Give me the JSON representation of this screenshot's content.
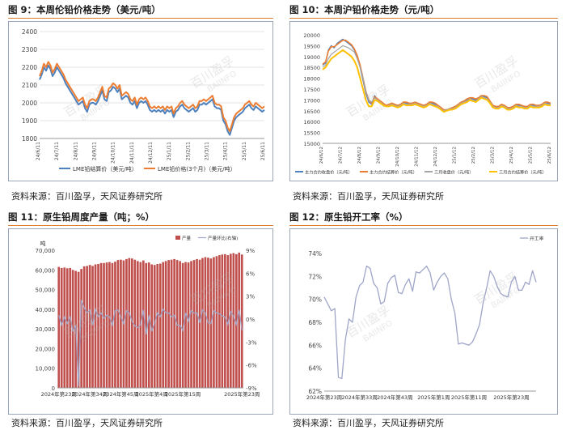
{
  "panels": {
    "p9": {
      "title": "图 9：本周伦铅价格走势（美元/吨）",
      "source": "资料来源：百川盈孚，天风证券研究所"
    },
    "p10": {
      "title": "图 10：本周沪铅价格走势（元/吨）",
      "source": "资料来源：百川盈孚，天风证券研究所"
    },
    "p11": {
      "title": "图 11：原生铅周度产量（吨；%）",
      "source": "资料来源：百川盈孚，天风证券研究所"
    },
    "p12": {
      "title": "图 12：原生铅开工率（%）",
      "source": "资料来源：百川盈孚，天风证券研究所"
    }
  },
  "watermark": {
    "text_cn": "百川盈孚",
    "text_en": "BAIINFO"
  },
  "colors": {
    "rule": "#e07b2a",
    "frame": "#9aa7b8",
    "blue": "#4f81bd",
    "orange": "#ed7d31",
    "gray": "#a5a5a5",
    "gold": "#ffc000",
    "bar": "#c0504d",
    "line12": "#9fa5c8"
  },
  "chart_data": [
    {
      "id": "p9",
      "type": "line",
      "ylim": [
        1800,
        2400
      ],
      "yticks": [
        1800,
        1900,
        2000,
        2100,
        2200,
        2300,
        2400
      ],
      "ytick_labels": [
        "1800",
        "1900",
        "2000",
        "2100",
        "2200",
        "2300",
        "2400"
      ],
      "xtick_labels": [
        "24/6/11",
        "24/7/11",
        "24/8/11",
        "24/9/11",
        "24/10/11",
        "24/11/11",
        "24/12/11",
        "25/1/11",
        "25/2/11",
        "25/3/11",
        "25/4/11",
        "25/5/11",
        "25/6/11"
      ],
      "legend": [
        "LME铅结算价（美元/吨）",
        "LME铅价格(3个月)（美元/吨）"
      ],
      "series": [
        {
          "name": "LME铅结算价（美元/吨）",
          "color": "#4f81bd",
          "values": [
            2130,
            2160,
            2200,
            2180,
            2210,
            2190,
            2150,
            2170,
            2200,
            2180,
            2160,
            2140,
            2110,
            2090,
            2070,
            2050,
            2030,
            2010,
            1990,
            2000,
            2010,
            1970,
            1950,
            1990,
            2000,
            2000,
            1990,
            2010,
            2040,
            2070,
            2020,
            2010,
            2060,
            2070,
            2090,
            2080,
            2060,
            2080,
            2020,
            2030,
            2040,
            2030,
            2000,
            1990,
            2010,
            1970,
            2000,
            2010,
            2000,
            2010,
            1990,
            1960,
            1950,
            1960,
            1950,
            1960,
            1950,
            1960,
            1940,
            1960,
            1950,
            1960,
            1920,
            1950,
            1960,
            1980,
            1990,
            1970,
            1960,
            1950,
            1960,
            1970,
            1950,
            1960,
            1990,
            1990,
            2000,
            1990,
            2000,
            2010,
            2020,
            1980,
            1970,
            1970,
            1960,
            1900,
            1880,
            1840,
            1820,
            1860,
            1900,
            1920,
            1930,
            1940,
            1950,
            1970,
            1980,
            1990,
            1970,
            1960,
            1980,
            1970,
            1960,
            1950,
            1960
          ]
        },
        {
          "name": "LME铅价格(3个月)（美元/吨）",
          "color": "#ed7d31",
          "values": [
            2150,
            2180,
            2220,
            2200,
            2230,
            2210,
            2170,
            2190,
            2220,
            2200,
            2180,
            2160,
            2130,
            2110,
            2090,
            2070,
            2050,
            2030,
            2010,
            2020,
            2030,
            1990,
            1970,
            2010,
            2020,
            2020,
            2010,
            2030,
            2060,
            2090,
            2040,
            2030,
            2080,
            2090,
            2110,
            2100,
            2080,
            2100,
            2040,
            2050,
            2060,
            2050,
            2020,
            2010,
            2030,
            1990,
            2020,
            2030,
            2020,
            2030,
            2010,
            1980,
            1970,
            1980,
            1970,
            1980,
            1970,
            1980,
            1960,
            1980,
            1970,
            1980,
            1940,
            1970,
            1980,
            2000,
            2010,
            1990,
            1980,
            1970,
            1980,
            1990,
            1970,
            1980,
            2010,
            2010,
            2020,
            2010,
            2020,
            2030,
            2040,
            2000,
            1990,
            1990,
            1980,
            1920,
            1900,
            1860,
            1840,
            1880,
            1920,
            1940,
            1950,
            1960,
            1970,
            1990,
            2000,
            2010,
            1990,
            1980,
            2000,
            1990,
            1980,
            1970,
            1980
          ]
        }
      ]
    },
    {
      "id": "p10",
      "type": "line",
      "ylim": [
        15000,
        20000
      ],
      "yticks": [
        15000,
        15500,
        16000,
        16500,
        17000,
        17500,
        18000,
        18500,
        19000,
        19500,
        20000
      ],
      "ytick_labels": [
        "15000",
        "15500",
        "16000",
        "16500",
        "17000",
        "17500",
        "18000",
        "18500",
        "19000",
        "19500",
        "20000"
      ],
      "xtick_labels": [
        "24/6/12",
        "24/7/12",
        "24/8/12",
        "24/9/12",
        "24/10/12",
        "24/11/12",
        "24/12/12",
        "25/1/12",
        "25/2/12",
        "25/3/12",
        "25/4/12",
        "25/5/12",
        "25/6/12"
      ],
      "legend": [
        "主力合约收盘价（元/吨）",
        "主力合约结算价（元/吨）",
        "三月收盘价（元/吨）",
        "三月合约结算价（元/吨）"
      ],
      "series": [
        {
          "name": "主力合约收盘价（元/吨）",
          "color": "#4f81bd",
          "values": [
            18600,
            18700,
            19300,
            19500,
            19400,
            19600,
            19700,
            19800,
            19700,
            19600,
            19500,
            19300,
            19000,
            18500,
            17900,
            17300,
            16900,
            16800,
            17200,
            17000,
            16900,
            16800,
            16700,
            16800,
            16850,
            16800,
            16700,
            16800,
            16900,
            16850,
            16800,
            16850,
            16900,
            16800,
            16750,
            16700,
            16800,
            16900,
            16850,
            16800,
            16700,
            16600,
            16500,
            16550,
            16600,
            16650,
            16700,
            16800,
            16900,
            16950,
            17000,
            17100,
            17050,
            17000,
            17100,
            17200,
            17150,
            17100,
            16900,
            16700,
            16650,
            16700,
            16800,
            16700,
            16600,
            16650,
            16700,
            16800,
            16750,
            16700,
            16650,
            16700,
            16800,
            16750,
            16700,
            16750,
            16800,
            16900,
            16850,
            16800
          ]
        },
        {
          "name": "主力合约结算价（元/吨）",
          "color": "#ed7d31",
          "values": [
            18650,
            18750,
            19250,
            19450,
            19450,
            19550,
            19650,
            19750,
            19750,
            19650,
            19550,
            19350,
            19050,
            18600,
            18000,
            17400,
            17000,
            16850,
            17150,
            17050,
            16950,
            16850,
            16750,
            16800,
            16850,
            16800,
            16750,
            16800,
            16900,
            16900,
            16850,
            16850,
            16900,
            16850,
            16800,
            16750,
            16800,
            16900,
            16900,
            16850,
            16750,
            16650,
            16550,
            16550,
            16600,
            16650,
            16700,
            16800,
            16900,
            16950,
            17050,
            17100,
            17100,
            17050,
            17100,
            17200,
            17200,
            17150,
            16950,
            16750,
            16700,
            16700,
            16800,
            16750,
            16650,
            16650,
            16700,
            16800,
            16800,
            16750,
            16700,
            16700,
            16800,
            16800,
            16750,
            16750,
            16800,
            16900,
            16900,
            16850
          ]
        },
        {
          "name": "三月收盘价（元/吨）",
          "color": "#a5a5a5",
          "values": [
            18500,
            18600,
            18900,
            19100,
            19200,
            19300,
            19400,
            19500,
            19450,
            19400,
            19300,
            19200,
            18900,
            18500,
            18000,
            17400,
            17000,
            16900,
            17100,
            17000,
            16900,
            16800,
            16700,
            16750,
            16800,
            16750,
            16700,
            16750,
            16850,
            16800,
            16800,
            16800,
            16850,
            16800,
            16750,
            16700,
            16750,
            16850,
            16800,
            16750,
            16700,
            16600,
            16500,
            16550,
            16600,
            16600,
            16650,
            16750,
            16850,
            16900,
            16950,
            17050,
            17000,
            16950,
            17050,
            17150,
            17100,
            17050,
            16900,
            16700,
            16650,
            16650,
            16750,
            16700,
            16600,
            16600,
            16650,
            16750,
            16700,
            16700,
            16650,
            16650,
            16750,
            16700,
            16700,
            16700,
            16750,
            16850,
            16800,
            16800
          ]
        },
        {
          "name": "三月合约结算价（元/吨）",
          "color": "#ffc000",
          "values": [
            18400,
            18500,
            18700,
            18900,
            19000,
            19100,
            19200,
            19300,
            19200,
            19100,
            19000,
            18800,
            18500,
            18000,
            17500,
            17000,
            16700,
            16700,
            17000,
            16950,
            16850,
            16750,
            16700,
            16700,
            16750,
            16700,
            16650,
            16700,
            16800,
            16750,
            16750,
            16750,
            16800,
            16750,
            16700,
            16650,
            16700,
            16800,
            16750,
            16700,
            16650,
            16550,
            16450,
            16500,
            16550,
            16550,
            16600,
            16700,
            16800,
            16850,
            16900,
            17000,
            16950,
            16900,
            17000,
            17100,
            17050,
            17000,
            16850,
            16650,
            16600,
            16600,
            16700,
            16650,
            16550,
            16550,
            16600,
            16700,
            16650,
            16650,
            16600,
            16600,
            16700,
            16650,
            16650,
            16650,
            16700,
            16800,
            16750,
            16750
          ]
        }
      ]
    },
    {
      "id": "p11",
      "type": "bar",
      "unit_label": "吨",
      "ylim": [
        0,
        70000
      ],
      "yticks": [
        0,
        10000,
        20000,
        30000,
        40000,
        50000,
        60000,
        70000
      ],
      "ytick_labels": [
        "0",
        "10,000",
        "20,000",
        "30,000",
        "40,000",
        "50,000",
        "60,000",
        "70,000"
      ],
      "y2lim": [
        -9,
        9
      ],
      "y2ticks": [
        -9,
        -6,
        -3,
        0,
        3,
        6,
        9
      ],
      "y2tick_labels": [
        "-9%",
        "-6%",
        "-3%",
        "0%",
        "3%",
        "6%",
        "9%"
      ],
      "xtick_labels": [
        "2024年第23周",
        "2024年第34周",
        "2024年第45周",
        "2025年第4周",
        "2025年第15周",
        "2025年第23周"
      ],
      "legend": [
        "产量",
        "产量环比(右轴)"
      ],
      "series": [
        {
          "name": "产量",
          "color": "#c0504d",
          "values": [
            61500,
            61000,
            61200,
            60800,
            61000,
            60000,
            59500,
            59000,
            60500,
            61800,
            62000,
            62500,
            62000,
            62800,
            63000,
            63500,
            63500,
            63800,
            64000,
            63500,
            64200,
            65000,
            65200,
            64800,
            65500,
            66000,
            65800,
            65200,
            64500,
            64000,
            64800,
            63500,
            63800,
            62800,
            62500,
            63000,
            63200,
            64000,
            64500,
            65000,
            65200,
            65500,
            65000,
            64500,
            63500,
            64000,
            63800,
            64500,
            65000,
            65500,
            65200,
            66000,
            66500,
            66200,
            65800,
            66500,
            67000,
            67500,
            67800,
            68000,
            67500,
            68200,
            68500,
            68000,
            68800,
            67800
          ]
        },
        {
          "name": "产量环比(右轴)",
          "color": "#9fa5c8",
          "values": [
            0.5,
            -0.8,
            0.3,
            -0.6,
            0.3,
            -1.6,
            -0.8,
            -8.8,
            2.5,
            1.5,
            0.8,
            1.2,
            -0.8,
            1.3,
            0.3,
            0.8,
            0.1,
            0.5,
            0.3,
            -0.8,
            1.1,
            1.2,
            0.3,
            -0.6,
            1.1,
            0.8,
            -0.3,
            -0.9,
            -1.1,
            -0.8,
            1.2,
            -2.0,
            0.5,
            -1.6,
            -0.5,
            0.8,
            0.3,
            1.3,
            0.8,
            0.8,
            0.3,
            0.5,
            -0.8,
            -0.8,
            -1.5,
            0.8,
            -0.3,
            1.1,
            0.8,
            0.8,
            -0.5,
            1.2,
            0.8,
            -0.5,
            -0.6,
            1.1,
            0.8,
            0.7,
            0.4,
            0.3,
            -0.7,
            1.0,
            0.4,
            -0.7,
            1.2,
            -1.5
          ]
        }
      ]
    },
    {
      "id": "p12",
      "type": "line",
      "ylim": [
        62,
        74
      ],
      "yticks": [
        62,
        64,
        66,
        68,
        70,
        72,
        74
      ],
      "ytick_labels": [
        "62%",
        "64%",
        "66%",
        "68%",
        "70%",
        "72%",
        "74%"
      ],
      "xtick_labels": [
        "2024年第23周",
        "2024年第33周",
        "2024年第43周",
        "2025年第1周",
        "2025年第11周",
        "2025年第23周"
      ],
      "legend": [
        "开工率"
      ],
      "series": [
        {
          "name": "开工率",
          "color": "#9fa5c8",
          "values": [
            70.2,
            69.6,
            69.0,
            69.2,
            63.2,
            63.1,
            66.5,
            68.3,
            68.0,
            70.2,
            71.2,
            71.5,
            72.9,
            72.7,
            71.4,
            71.0,
            69.6,
            69.8,
            71.4,
            71.9,
            72.1,
            70.6,
            70.5,
            71.3,
            71.8,
            70.7,
            72.4,
            72.3,
            72.6,
            72.9,
            72.3,
            70.8,
            71.5,
            72.0,
            72.3,
            71.8,
            70.0,
            68.8,
            66.1,
            66.2,
            66.1,
            66.0,
            66.3,
            67.0,
            67.8,
            69.7,
            71.0,
            72.5,
            72.0,
            71.1,
            70.5,
            70.3,
            70.2,
            71.5,
            72.0,
            70.8,
            70.8,
            71.5,
            71.3,
            72.5,
            71.5
          ]
        }
      ]
    }
  ]
}
